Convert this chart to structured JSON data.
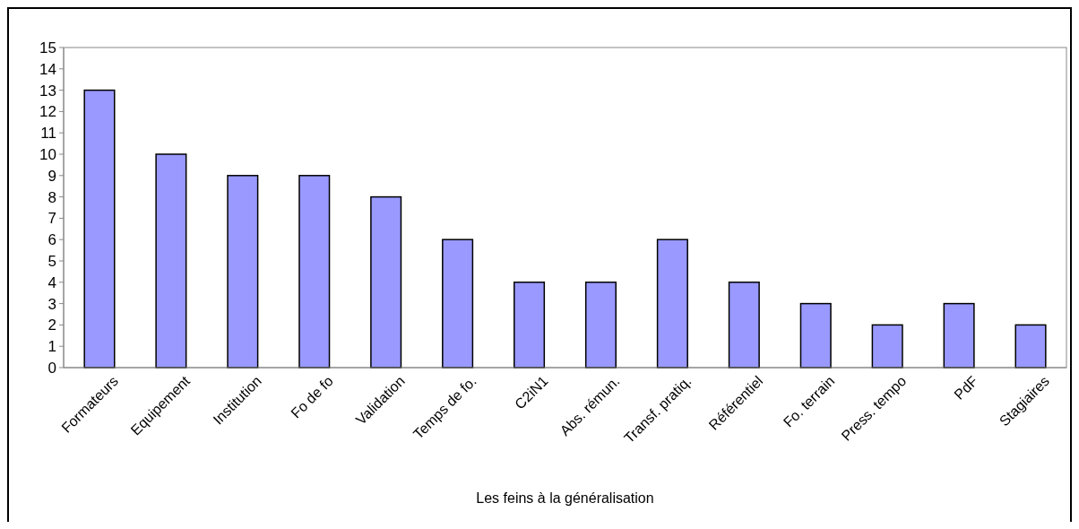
{
  "chart_data": {
    "type": "bar",
    "xlabel": "Les feins à la généralisation",
    "categories": [
      "Formateurs",
      "Equipement",
      "Institution",
      "Fo de fo",
      "Validation",
      "Temps de fo.",
      "C2iN1",
      "Abs. rémun.",
      "Transf. pratiq.",
      "Référentiel",
      "Fo. terrain",
      "Press. tempo",
      "PdF",
      "Stagiaires"
    ],
    "values": [
      13,
      10,
      9,
      9,
      8,
      6,
      4,
      4,
      6,
      4,
      3,
      2,
      3,
      2
    ],
    "color": "#9999ff",
    "ylim": [
      0,
      15
    ],
    "yticks": [
      0,
      1,
      2,
      3,
      4,
      5,
      6,
      7,
      8,
      9,
      10,
      11,
      12,
      13,
      14,
      15
    ],
    "grid": false
  }
}
